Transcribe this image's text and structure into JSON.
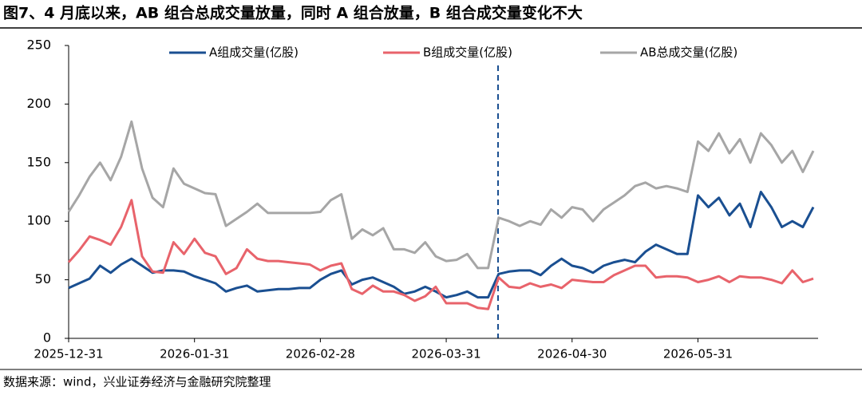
{
  "title": "图7、4 月底以来，AB 组合总成交量放量，同时 A 组合放量，B 组合成交量变化不大",
  "source": "数据来源：wind，兴业证券经济与金融研究院整理",
  "chart_data": {
    "type": "line",
    "categories": [
      "2025-12-31",
      null,
      null,
      null,
      null,
      null,
      null,
      null,
      null,
      null,
      null,
      null,
      "2026-01-31",
      null,
      null,
      null,
      null,
      null,
      null,
      null,
      null,
      null,
      null,
      null,
      "2026-02-28",
      null,
      null,
      null,
      null,
      null,
      null,
      null,
      null,
      null,
      null,
      null,
      "2026-03-31",
      null,
      null,
      null,
      null,
      null,
      null,
      null,
      null,
      null,
      null,
      null,
      "2026-04-30",
      null,
      null,
      null,
      null,
      null,
      null,
      null,
      null,
      null,
      null,
      null,
      "2026-05-31",
      null,
      null,
      null,
      null,
      null,
      null,
      null,
      null,
      null,
      null,
      null
    ],
    "series": [
      {
        "name": "A组成交量(亿股)",
        "color": "#1a4f91",
        "values": [
          43,
          47,
          51,
          62,
          56,
          63,
          68,
          62,
          56,
          58,
          58,
          57,
          53,
          50,
          47,
          40,
          43,
          45,
          40,
          41,
          42,
          42,
          43,
          43,
          50,
          55,
          58,
          46,
          50,
          52,
          48,
          44,
          38,
          40,
          44,
          40,
          35,
          37,
          40,
          35,
          35,
          55,
          57,
          58,
          58,
          54,
          62,
          68,
          62,
          60,
          56,
          62,
          65,
          67,
          65,
          74,
          80,
          76,
          72,
          72,
          122,
          112,
          120,
          105,
          115,
          95,
          125,
          112,
          95,
          100,
          95,
          112
        ]
      },
      {
        "name": "B组成交量(亿股)",
        "color": "#e8636b",
        "values": [
          65,
          75,
          87,
          84,
          80,
          95,
          118,
          70,
          57,
          56,
          82,
          72,
          85,
          73,
          70,
          55,
          60,
          76,
          68,
          66,
          66,
          65,
          64,
          63,
          58,
          62,
          64,
          42,
          38,
          45,
          40,
          40,
          37,
          32,
          36,
          44,
          30,
          30,
          30,
          26,
          25,
          52,
          44,
          43,
          47,
          44,
          46,
          43,
          50,
          49,
          48,
          48,
          54,
          58,
          62,
          62,
          52,
          53,
          53,
          52,
          48,
          50,
          53,
          48,
          53,
          52,
          52,
          50,
          47,
          58,
          48,
          51
        ]
      },
      {
        "name": "AB总成交量(亿股)",
        "color": "#a6a6a6",
        "values": [
          108,
          122,
          138,
          150,
          135,
          155,
          185,
          145,
          120,
          112,
          145,
          132,
          128,
          124,
          123,
          96,
          102,
          108,
          115,
          107,
          107,
          107,
          107,
          107,
          108,
          118,
          123,
          85,
          93,
          88,
          94,
          76,
          76,
          73,
          82,
          70,
          66,
          67,
          72,
          60,
          60,
          103,
          100,
          96,
          100,
          97,
          110,
          103,
          112,
          110,
          100,
          110,
          116,
          122,
          130,
          133,
          128,
          130,
          128,
          125,
          168,
          160,
          175,
          158,
          170,
          150,
          175,
          165,
          150,
          160,
          142,
          160
        ]
      }
    ],
    "ylim": [
      0,
      250
    ],
    "yticks": [
      0,
      50,
      100,
      150,
      200,
      250
    ],
    "grid": false
  }
}
